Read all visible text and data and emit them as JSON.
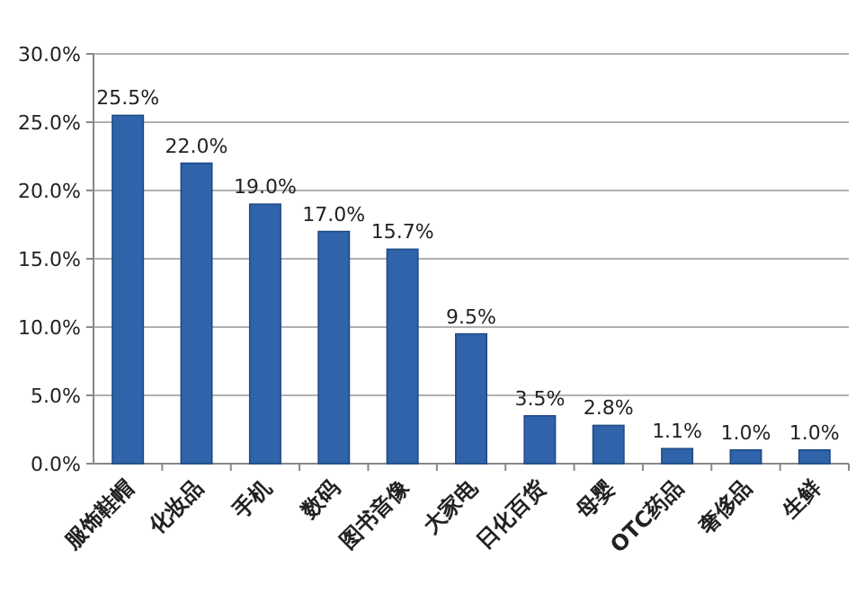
{
  "chart_data": {
    "type": "bar",
    "categories": [
      "服饰鞋帽",
      "化妆品",
      "手机",
      "数码",
      "图书音像",
      "大家电",
      "日化百货",
      "母婴",
      "OTC药品",
      "奢侈品",
      "生鲜"
    ],
    "values": [
      25.5,
      22.0,
      19.0,
      17.0,
      15.7,
      9.5,
      3.5,
      2.8,
      1.1,
      1.0,
      1.0
    ],
    "value_labels": [
      "25.5%",
      "22.0%",
      "19.0%",
      "17.0%",
      "15.7%",
      "9.5%",
      "3.5%",
      "2.8%",
      "1.1%",
      "1.0%",
      "1.0%"
    ],
    "color": "#2f64ab",
    "ylim": [
      0,
      30
    ],
    "yticks": [
      {
        "value": 0,
        "label": "0.0%"
      },
      {
        "value": 5,
        "label": "5.0%"
      },
      {
        "value": 10,
        "label": "10.0%"
      },
      {
        "value": 15,
        "label": "15.0%"
      },
      {
        "value": 20,
        "label": "20.0%"
      },
      {
        "value": 25,
        "label": "25.0%"
      },
      {
        "value": 30,
        "label": "30.0%"
      }
    ],
    "grid": "y"
  }
}
